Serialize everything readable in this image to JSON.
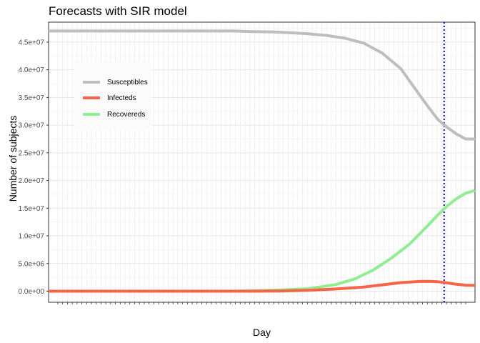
{
  "chart_data": {
    "type": "line",
    "title": "Forecasts with SIR model",
    "xlabel": "Day",
    "ylabel": "Number of subjects",
    "ylim": [
      -2000000,
      48600000
    ],
    "yticks": [
      "0.0e+00",
      "5.0e+06",
      "1.0e+07",
      "1.5e+07",
      "2.0e+07",
      "2.5e+07",
      "3.0e+07",
      "3.5e+07",
      "4.0e+07",
      "4.5e+07"
    ],
    "ytick_values": [
      0,
      5000000,
      10000000,
      15000000,
      20000000,
      25000000,
      30000000,
      35000000,
      40000000,
      45000000
    ],
    "grid": true,
    "legend_position": "top-left",
    "vline": {
      "x_index": 80.5,
      "color": "#0000ff",
      "style": "dotted"
    },
    "x_day_count": 86,
    "series": [
      {
        "name": "Susceptibles",
        "color": "#bebebe",
        "points": [
          [
            0,
            47000000
          ],
          [
            40,
            47000000
          ],
          [
            44,
            46900000
          ],
          [
            48,
            46850000
          ],
          [
            52,
            46700000
          ],
          [
            56,
            46500000
          ],
          [
            60,
            46200000
          ],
          [
            64,
            45700000
          ],
          [
            68,
            44800000
          ],
          [
            72,
            43000000
          ],
          [
            76,
            40200000
          ],
          [
            80,
            35500000
          ],
          [
            82,
            33200000
          ],
          [
            84,
            31000000
          ],
          [
            86,
            29600000
          ],
          [
            88,
            28400000
          ],
          [
            90,
            27500000
          ],
          [
            92,
            27500000
          ]
        ]
      },
      {
        "name": "Infecteds",
        "color": "#fa6446",
        "points": [
          [
            0,
            0
          ],
          [
            44,
            0
          ],
          [
            50,
            40000
          ],
          [
            56,
            160000
          ],
          [
            62,
            400000
          ],
          [
            68,
            750000
          ],
          [
            72,
            1150000
          ],
          [
            76,
            1550000
          ],
          [
            80,
            1750000
          ],
          [
            82,
            1780000
          ],
          [
            84,
            1700000
          ],
          [
            86,
            1500000
          ],
          [
            88,
            1250000
          ],
          [
            90,
            1080000
          ],
          [
            92,
            1050000
          ]
        ]
      },
      {
        "name": "Recovereds",
        "color": "#90ee90",
        "points": [
          [
            0,
            0
          ],
          [
            40,
            0
          ],
          [
            48,
            150000
          ],
          [
            56,
            450000
          ],
          [
            62,
            1200000
          ],
          [
            66,
            2200000
          ],
          [
            70,
            3800000
          ],
          [
            74,
            6000000
          ],
          [
            78,
            8600000
          ],
          [
            80,
            10300000
          ],
          [
            82,
            12000000
          ],
          [
            84,
            13800000
          ],
          [
            86,
            15400000
          ],
          [
            88,
            16700000
          ],
          [
            90,
            17700000
          ],
          [
            92,
            18200000
          ]
        ]
      }
    ]
  }
}
